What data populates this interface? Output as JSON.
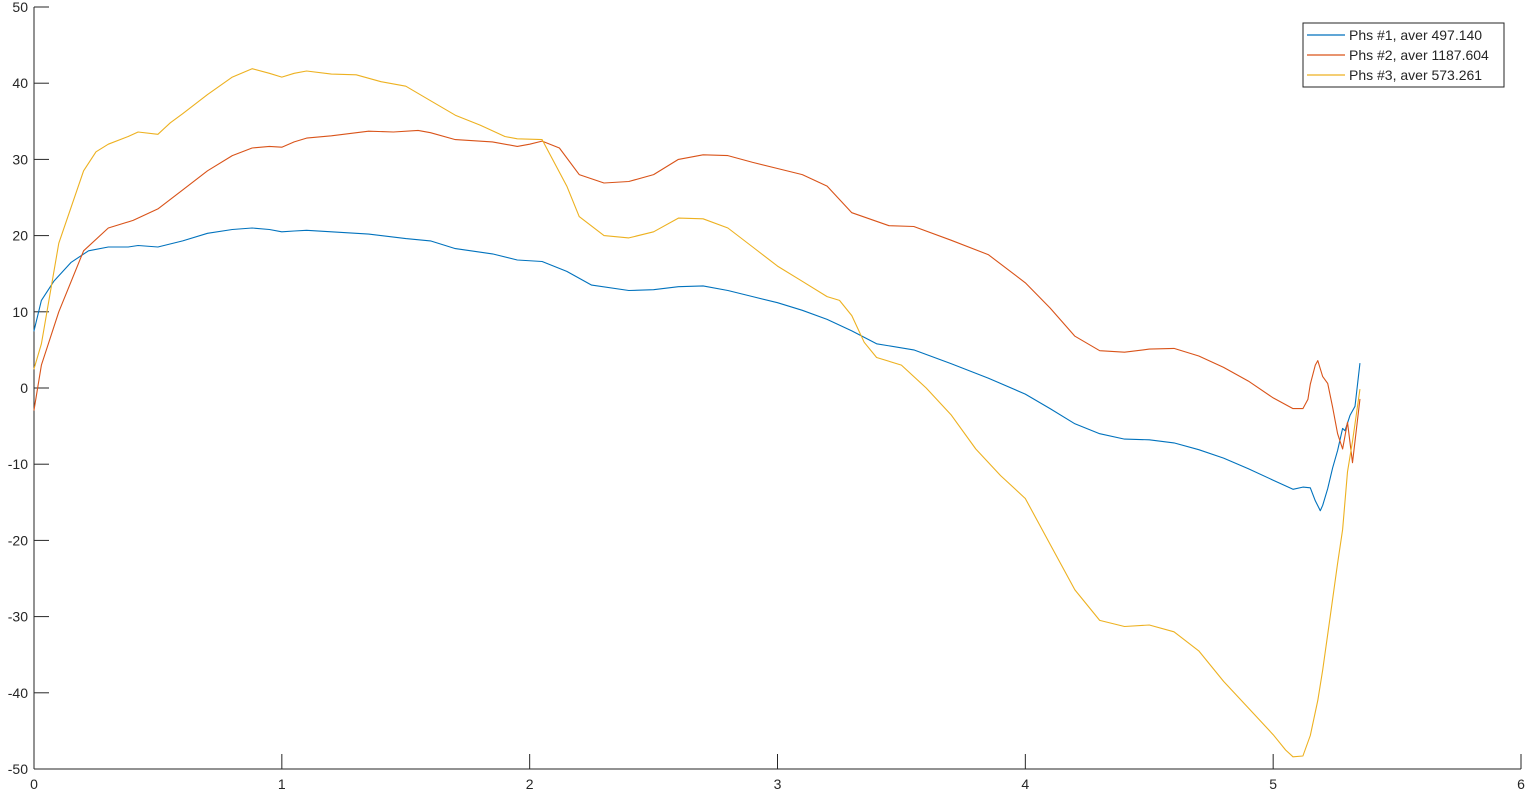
{
  "chart_data": {
    "type": "line",
    "title": "",
    "xlabel": "",
    "ylabel": "",
    "xlim": [
      0,
      6
    ],
    "ylim": [
      -50,
      50
    ],
    "xticks": [
      0,
      1,
      2,
      3,
      4,
      5,
      6
    ],
    "yticks": [
      -50,
      -40,
      -30,
      -20,
      -10,
      0,
      10,
      20,
      30,
      40,
      50
    ],
    "xtick_labels": [
      "0",
      "1",
      "2",
      "3",
      "4",
      "5",
      "6"
    ],
    "ytick_labels": [
      "-50",
      "-40",
      "-30",
      "-20",
      "-10",
      "0",
      "10",
      "20",
      "30",
      "40",
      "50"
    ],
    "grid": false,
    "legend_position": "top-right",
    "series": [
      {
        "name": "Phs #1, aver 497.140",
        "color": "#0072BD",
        "x": [
          0,
          0.03,
          0.08,
          0.15,
          0.22,
          0.3,
          0.38,
          0.42,
          0.5,
          0.6,
          0.7,
          0.8,
          0.88,
          0.95,
          1.0,
          1.05,
          1.1,
          1.2,
          1.35,
          1.5,
          1.6,
          1.7,
          1.85,
          1.95,
          2.05,
          2.15,
          2.25,
          2.4,
          2.5,
          2.6,
          2.7,
          2.8,
          2.9,
          3.0,
          3.1,
          3.2,
          3.3,
          3.4,
          3.55,
          3.7,
          3.85,
          4.0,
          4.1,
          4.2,
          4.3,
          4.4,
          4.5,
          4.6,
          4.7,
          4.8,
          4.9,
          5.0,
          5.08,
          5.12,
          5.15,
          5.17,
          5.19,
          5.2,
          5.22,
          5.24,
          5.26,
          5.28,
          5.29,
          5.31,
          5.33,
          5.35
        ],
        "y": [
          7.5,
          11.5,
          14,
          16.5,
          18,
          18.5,
          18.5,
          18.7,
          18.5,
          19.3,
          20.3,
          20.8,
          21,
          20.8,
          20.5,
          20.6,
          20.7,
          20.5,
          20.2,
          19.6,
          19.3,
          18.3,
          17.6,
          16.8,
          16.6,
          15.3,
          13.5,
          12.8,
          12.9,
          13.3,
          13.4,
          12.8,
          12,
          11.2,
          10.2,
          9,
          7.5,
          5.8,
          5,
          3.2,
          1.3,
          -0.8,
          -2.7,
          -4.7,
          -6,
          -6.7,
          -6.8,
          -7.2,
          -8.1,
          -9.2,
          -10.6,
          -12.1,
          -13.3,
          -13,
          -13.1,
          -14.8,
          -16.1,
          -15.4,
          -13.2,
          -10.5,
          -8.2,
          -5.3,
          -5.6,
          -3.6,
          -2.4,
          3.2
        ]
      },
      {
        "name": "Phs #2, aver 1187.604",
        "color": "#D95319",
        "x": [
          0,
          0.03,
          0.1,
          0.2,
          0.3,
          0.4,
          0.5,
          0.6,
          0.7,
          0.8,
          0.88,
          0.95,
          1.0,
          1.05,
          1.1,
          1.2,
          1.35,
          1.45,
          1.55,
          1.6,
          1.7,
          1.85,
          1.95,
          2.0,
          2.05,
          2.12,
          2.2,
          2.3,
          2.4,
          2.5,
          2.6,
          2.7,
          2.8,
          2.9,
          3.0,
          3.1,
          3.2,
          3.3,
          3.45,
          3.55,
          3.7,
          3.85,
          4.0,
          4.1,
          4.2,
          4.3,
          4.4,
          4.5,
          4.6,
          4.7,
          4.8,
          4.9,
          5.0,
          5.08,
          5.12,
          5.14,
          5.15,
          5.17,
          5.18,
          5.2,
          5.22,
          5.24,
          5.26,
          5.28,
          5.3,
          5.32,
          5.35
        ],
        "y": [
          -2.9,
          3,
          10,
          18,
          21,
          22,
          23.5,
          26,
          28.5,
          30.5,
          31.5,
          31.7,
          31.6,
          32.3,
          32.8,
          33.1,
          33.7,
          33.6,
          33.8,
          33.5,
          32.6,
          32.3,
          31.7,
          32,
          32.4,
          31.5,
          28,
          26.9,
          27.1,
          28,
          30,
          30.6,
          30.5,
          29.6,
          28.8,
          28,
          26.5,
          23,
          21.3,
          21.2,
          19.4,
          17.5,
          13.8,
          10.5,
          6.8,
          4.9,
          4.7,
          5.1,
          5.2,
          4.2,
          2.7,
          0.9,
          -1.3,
          -2.7,
          -2.7,
          -1.5,
          0.5,
          3,
          3.6,
          1.5,
          0.6,
          -2.5,
          -6,
          -8,
          -4.5,
          -9.8,
          -1.5
        ]
      },
      {
        "name": "Phs #3, aver 573.261",
        "color": "#EDB120",
        "x": [
          0,
          0.03,
          0.1,
          0.2,
          0.25,
          0.3,
          0.38,
          0.42,
          0.5,
          0.55,
          0.6,
          0.7,
          0.8,
          0.88,
          0.95,
          1.0,
          1.05,
          1.1,
          1.2,
          1.3,
          1.4,
          1.5,
          1.6,
          1.7,
          1.8,
          1.9,
          1.95,
          2.05,
          2.15,
          2.2,
          2.3,
          2.4,
          2.5,
          2.6,
          2.7,
          2.8,
          2.9,
          3.0,
          3.1,
          3.2,
          3.25,
          3.3,
          3.35,
          3.4,
          3.5,
          3.6,
          3.7,
          3.8,
          3.9,
          4.0,
          4.1,
          4.2,
          4.3,
          4.4,
          4.5,
          4.6,
          4.7,
          4.8,
          4.9,
          5.0,
          5.05,
          5.08,
          5.12,
          5.15,
          5.18,
          5.2,
          5.23,
          5.26,
          5.28,
          5.3,
          5.32,
          5.35
        ],
        "y": [
          2.5,
          5.8,
          19,
          28.5,
          31,
          32,
          33,
          33.6,
          33.3,
          34.8,
          36,
          38.5,
          40.8,
          41.9,
          41.3,
          40.8,
          41.3,
          41.6,
          41.2,
          41.1,
          40.2,
          39.6,
          37.7,
          35.8,
          34.5,
          33,
          32.7,
          32.6,
          26.5,
          22.5,
          20,
          19.7,
          20.5,
          22.3,
          22.2,
          21,
          18.5,
          16,
          14,
          12,
          11.5,
          9.5,
          6,
          4,
          3,
          0,
          -3.5,
          -8,
          -11.5,
          -14.5,
          -20.5,
          -26.5,
          -30.5,
          -31.3,
          -31.1,
          -32,
          -34.5,
          -38.5,
          -42,
          -45.5,
          -47.5,
          -48.4,
          -48.3,
          -45.6,
          -41,
          -37,
          -30,
          -23,
          -18.6,
          -11,
          -7,
          -0.2
        ]
      }
    ]
  }
}
